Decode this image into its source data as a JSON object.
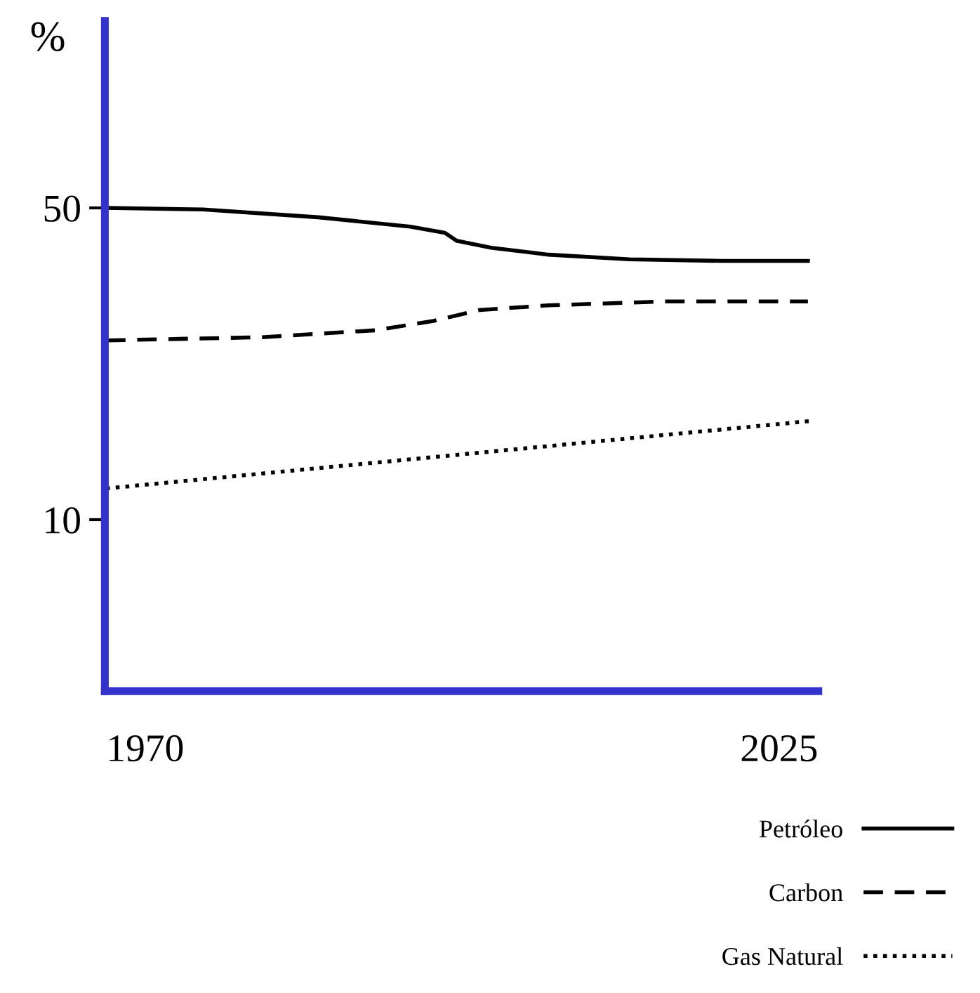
{
  "chart_data": {
    "type": "line",
    "ylabel": "%",
    "xlim": [
      1966.5,
      2028.4
    ],
    "xticks": [
      1970,
      2025
    ],
    "ylim": [
      -12,
      74
    ],
    "yticks": [
      10,
      50
    ],
    "grid": false,
    "legend": "bottom right",
    "marker": "none",
    "series": [
      {
        "name": "Petróleo",
        "color": "#000000",
        "line_style": "solid",
        "x": [
          1966.6,
          1975,
          1985,
          1993,
          1996,
          1997,
          2000,
          2005,
          2012,
          2020,
          2027.5
        ],
        "values": [
          50,
          49.8,
          48.8,
          47.6,
          46.8,
          45.8,
          44.9,
          44.0,
          43.4,
          43.2,
          43.2
        ]
      },
      {
        "name": "Carbon",
        "color": "#000000",
        "line_style": "dashed",
        "x": [
          1966.6,
          1980,
          1990,
          1995,
          1999,
          2005,
          2015,
          2027.5
        ],
        "values": [
          33,
          33.4,
          34.3,
          35.5,
          36.9,
          37.5,
          38,
          38
        ]
      },
      {
        "name": "Gas Natural",
        "color": "#000000",
        "line_style": "dotted",
        "x": [
          1966.6,
          2028
        ],
        "values": [
          14,
          22.7
        ]
      }
    ]
  }
}
